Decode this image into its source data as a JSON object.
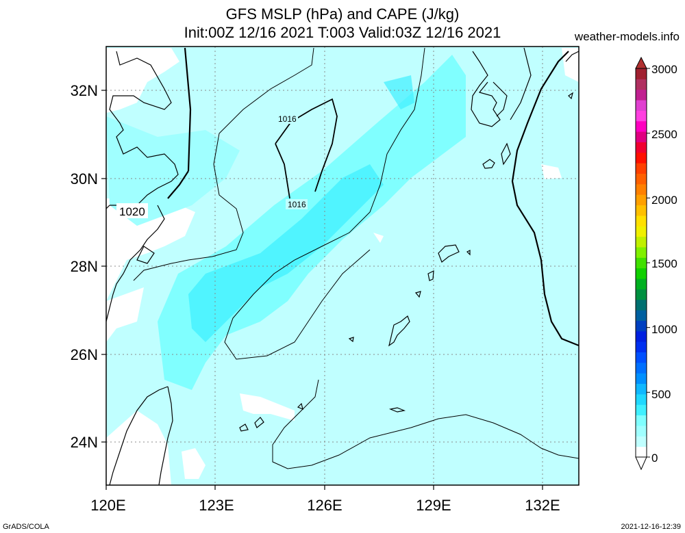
{
  "header": {
    "title_line1": "GFS MSLP (hPa) and CAPE (J/kg)",
    "title_line2": "Init:00Z 12/16 2021 T:003 Valid:03Z 12/16 2021",
    "site": "weather-models.info"
  },
  "footer": {
    "left": "GrADS/COLA",
    "right": "2021-12-16-12:39"
  },
  "map": {
    "lat_labels": [
      "32N",
      "30N",
      "28N",
      "26N",
      "24N"
    ],
    "lon_labels": [
      "120E",
      "123E",
      "126E",
      "129E",
      "132E"
    ],
    "isobar_labels": [
      "1016",
      "1016",
      "1020"
    ]
  },
  "colorbar": {
    "ticks": [
      "3000",
      "2500",
      "2000",
      "1500",
      "1000",
      "500",
      "0"
    ],
    "colors": [
      "#ffffff",
      "#c0ffff",
      "#a0ffff",
      "#80ffff",
      "#40f0ff",
      "#20d8ff",
      "#10b8ff",
      "#0090ff",
      "#0070ff",
      "#0050ff",
      "#0030f0",
      "#0020e0",
      "#0040c0",
      "#0060a0",
      "#007070",
      "#009040",
      "#00b020",
      "#10d000",
      "#40e000",
      "#80f000",
      "#c0f000",
      "#f0f000",
      "#ffe000",
      "#ffc000",
      "#ffa000",
      "#ff8000",
      "#ff6000",
      "#ff4000",
      "#ff1000",
      "#f00030",
      "#e00080",
      "#ff00c0",
      "#ff40e0",
      "#e040d0",
      "#c02090",
      "#b03060",
      "#a02030"
    ],
    "top_color": "#b03030"
  }
}
